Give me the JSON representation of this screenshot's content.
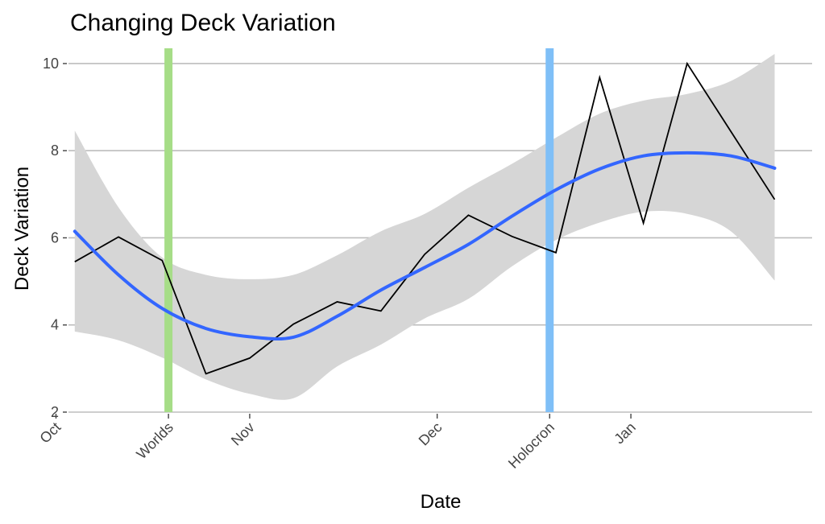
{
  "chart_data": {
    "type": "line",
    "title": "Changing Deck Variation",
    "xlabel": "Date",
    "ylabel": "Deck Variation",
    "ylim": [
      2,
      10.35
    ],
    "xlim": [
      "2015-10-03",
      "2016-01-30"
    ],
    "yticks": [
      2,
      4,
      6,
      8,
      10
    ],
    "xticks": [
      {
        "label": "Oct",
        "date": "2015-10-01"
      },
      {
        "label": "Worlds",
        "date": "2015-10-19"
      },
      {
        "label": "Nov",
        "date": "2015-11-01"
      },
      {
        "label": "Dec",
        "date": "2015-12-01"
      },
      {
        "label": "Holocron",
        "date": "2015-12-19"
      },
      {
        "label": "Jan",
        "date": "2016-01-01"
      }
    ],
    "grid": true,
    "series": [
      {
        "type": "line",
        "color": "#000000",
        "x": [
          "2015-10-04",
          "2015-10-11",
          "2015-10-18",
          "2015-10-25",
          "2015-11-01",
          "2015-11-08",
          "2015-11-15",
          "2015-11-22",
          "2015-11-29",
          "2015-12-06",
          "2015-12-13",
          "2015-12-20",
          "2015-12-27",
          "2016-01-03",
          "2016-01-10",
          "2016-01-17",
          "2016-01-24"
        ],
        "y": [
          5.45,
          6.02,
          5.48,
          2.88,
          3.24,
          4.02,
          4.53,
          4.32,
          5.62,
          6.52,
          6.03,
          5.66,
          9.68,
          6.34,
          10.0,
          8.44,
          6.88
        ]
      },
      {
        "type": "smooth",
        "color": "#3366FF",
        "x": [
          "2015-10-04",
          "2015-10-11",
          "2015-10-18",
          "2015-10-25",
          "2015-11-01",
          "2015-11-08",
          "2015-11-15",
          "2015-11-22",
          "2015-11-29",
          "2015-12-06",
          "2015-12-13",
          "2015-12-20",
          "2015-12-27",
          "2016-01-03",
          "2016-01-10",
          "2016-01-17",
          "2016-01-24"
        ],
        "y": [
          6.15,
          5.15,
          4.38,
          3.92,
          3.73,
          3.72,
          4.2,
          4.8,
          5.32,
          5.85,
          6.5,
          7.1,
          7.58,
          7.88,
          7.95,
          7.88,
          7.6
        ],
        "ci_lower": [
          3.85,
          3.65,
          3.25,
          2.75,
          2.42,
          2.32,
          3.05,
          3.55,
          4.15,
          4.6,
          5.35,
          5.95,
          6.35,
          6.6,
          6.55,
          6.15,
          5.02
        ],
        "ci_upper": [
          8.46,
          6.7,
          5.55,
          5.15,
          5.05,
          5.15,
          5.6,
          6.15,
          6.55,
          7.15,
          7.7,
          8.3,
          8.85,
          9.15,
          9.3,
          9.6,
          10.22
        ],
        "ci_color": "#d6d6d6"
      }
    ],
    "vlines": [
      {
        "label": "Worlds",
        "date": "2015-10-19",
        "color": "#a6dd87"
      },
      {
        "label": "Holocron",
        "date": "2015-12-19",
        "color": "#7fbff7"
      }
    ]
  }
}
